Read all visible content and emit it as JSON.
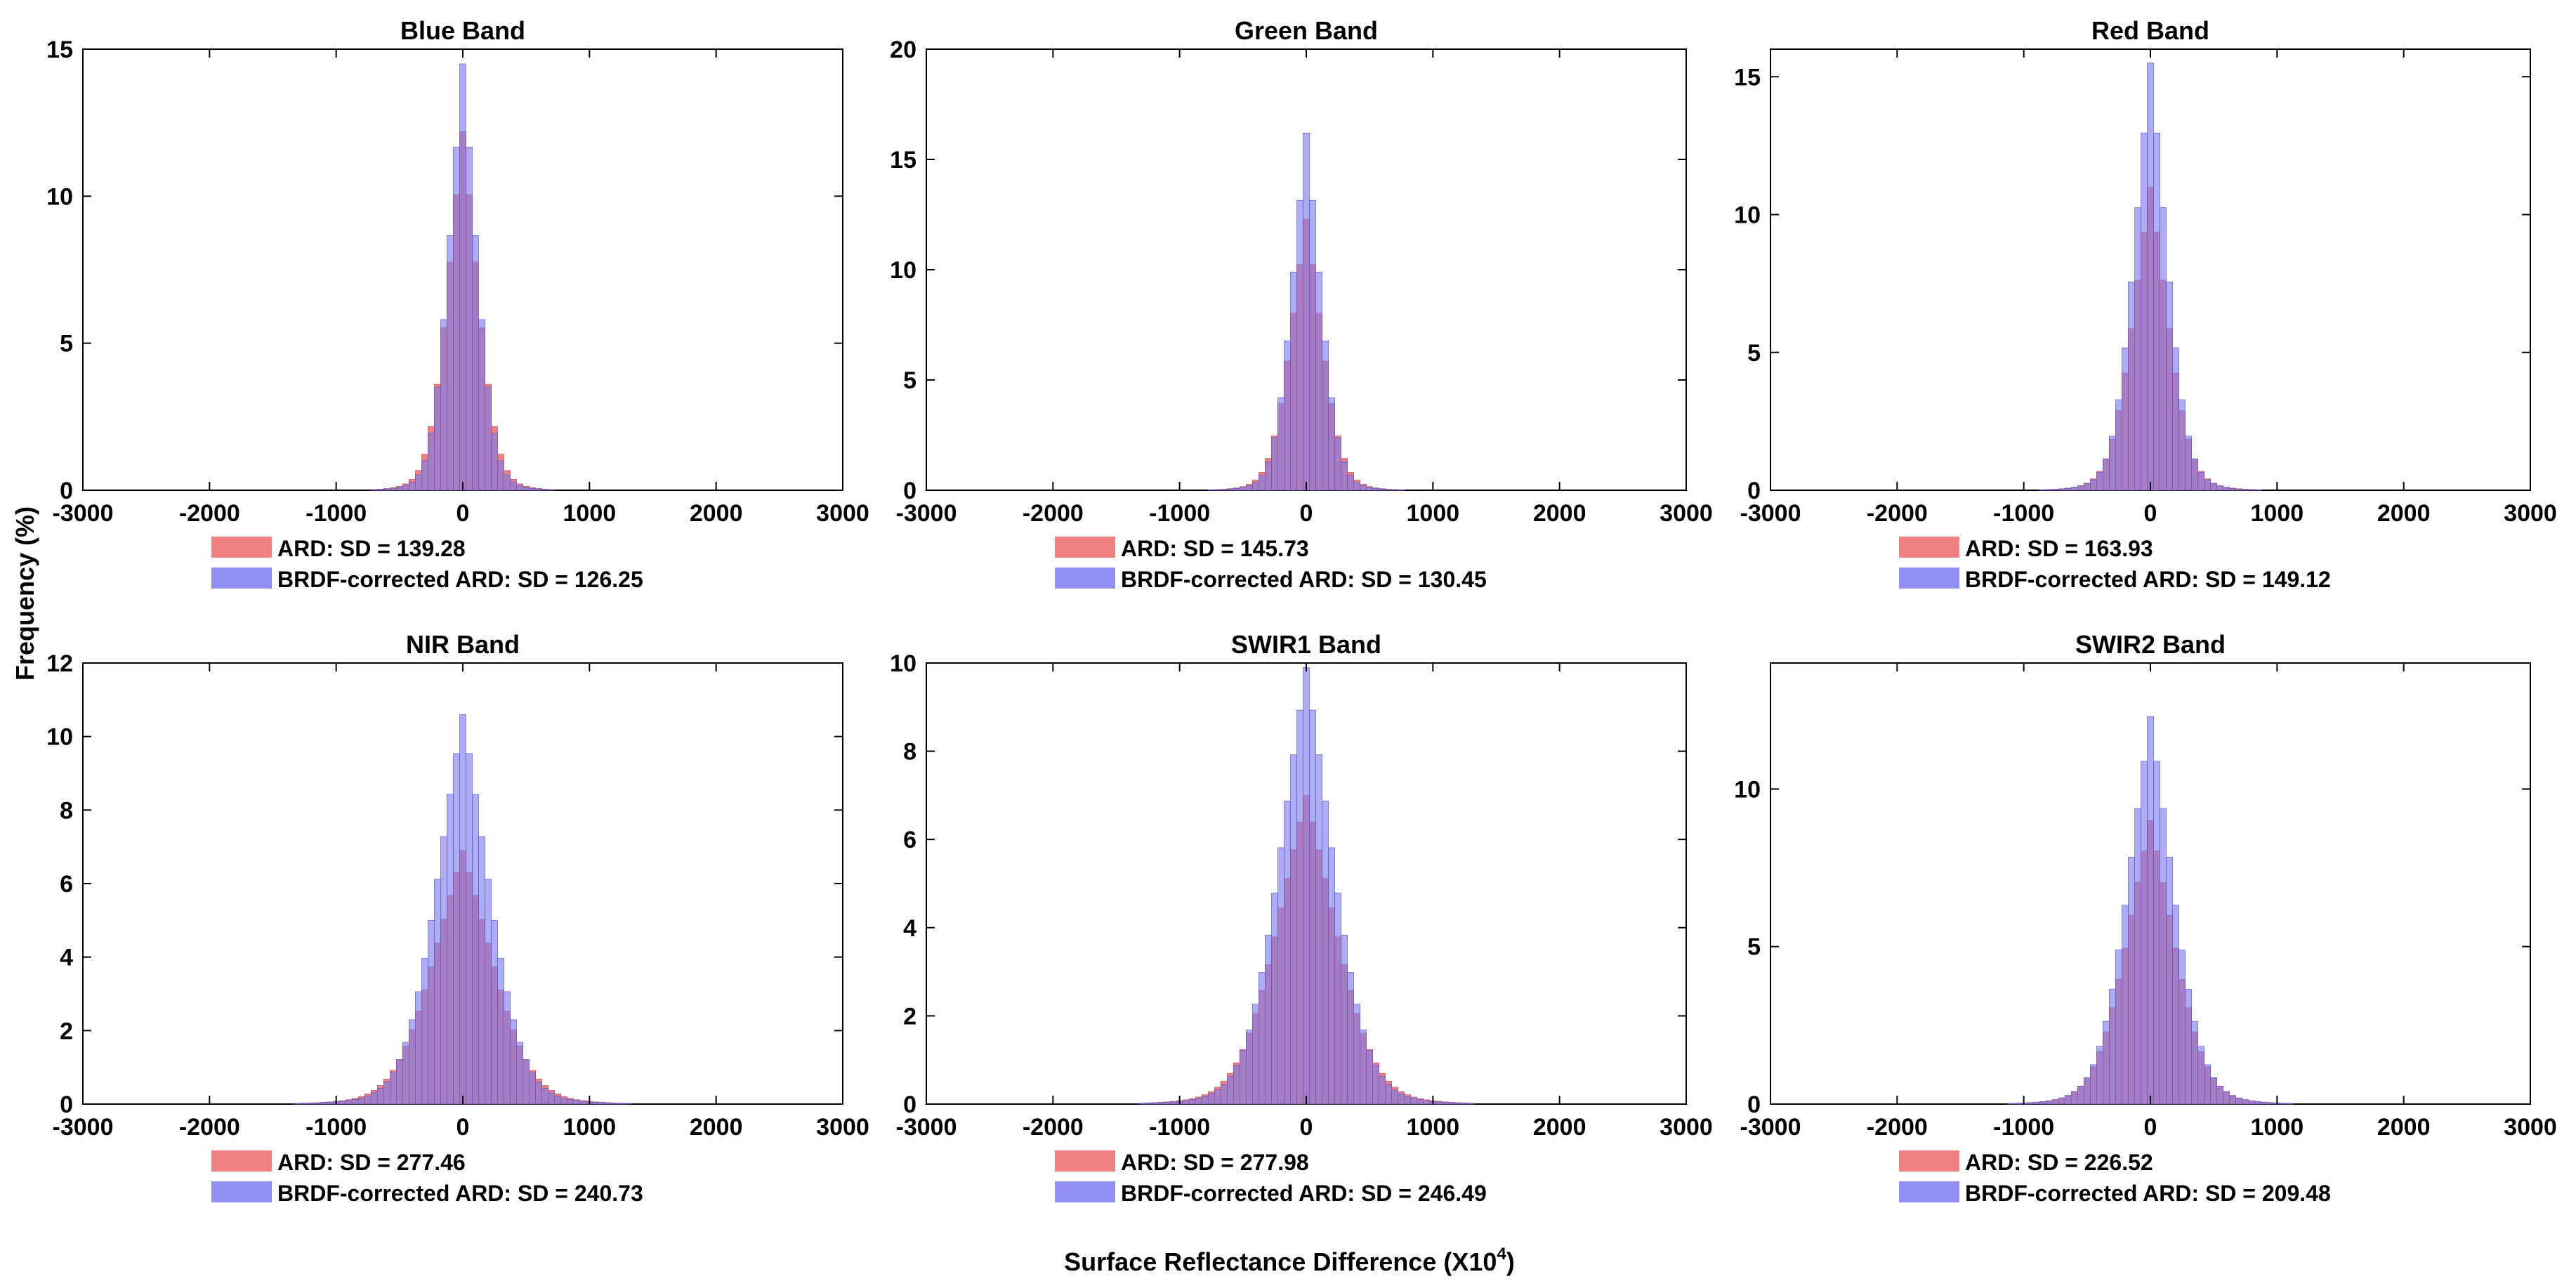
{
  "figure": {
    "ylabel": "Frequency (%)",
    "xlabel_main": "Surface Reflectance Difference (X10",
    "xlabel_exp": "4",
    "xlabel_close": ")"
  },
  "colors": {
    "ard": "#f08080",
    "brdf": "#7b7bf0",
    "overlap": "#8a4bc8",
    "axis": "#000000"
  },
  "chart_data": [
    {
      "type": "bar",
      "title": "Blue Band",
      "xlim": [
        -3000,
        3000
      ],
      "ylim": [
        0,
        15
      ],
      "xticks": [
        -3000,
        -2000,
        -1000,
        0,
        1000,
        2000,
        3000
      ],
      "yticks": [
        0,
        5,
        10,
        15
      ],
      "series": [
        {
          "name": "ARD",
          "sd_label": "SD = 139.28",
          "sd": 139.28,
          "peak": 12.2
        },
        {
          "name": "BRDF-corrected ARD",
          "sd_label": "SD = 126.25",
          "sd": 126.25,
          "peak": 14.5
        }
      ]
    },
    {
      "type": "bar",
      "title": "Green Band",
      "xlim": [
        -3000,
        3000
      ],
      "ylim": [
        0,
        20
      ],
      "xticks": [
        -3000,
        -2000,
        -1000,
        0,
        1000,
        2000,
        3000
      ],
      "yticks": [
        0,
        5,
        10,
        15,
        20
      ],
      "series": [
        {
          "name": "ARD",
          "sd_label": "SD = 145.73",
          "sd": 145.73,
          "peak": 12.3
        },
        {
          "name": "BRDF-corrected ARD",
          "sd_label": "SD = 130.45",
          "sd": 130.45,
          "peak": 16.2
        }
      ]
    },
    {
      "type": "bar",
      "title": "Red Band",
      "xlim": [
        -3000,
        3000
      ],
      "ylim": [
        0,
        16
      ],
      "xticks": [
        -3000,
        -2000,
        -1000,
        0,
        1000,
        2000,
        3000
      ],
      "yticks": [
        0,
        5,
        10,
        15
      ],
      "series": [
        {
          "name": "ARD",
          "sd_label": "SD = 163.93",
          "sd": 163.93,
          "peak": 11.0
        },
        {
          "name": "BRDF-corrected ARD",
          "sd_label": "SD = 149.12",
          "sd": 149.12,
          "peak": 15.5
        }
      ]
    },
    {
      "type": "bar",
      "title": "NIR Band",
      "xlim": [
        -3000,
        3000
      ],
      "ylim": [
        0,
        12
      ],
      "xticks": [
        -3000,
        -2000,
        -1000,
        0,
        1000,
        2000,
        3000
      ],
      "yticks": [
        0,
        2,
        4,
        6,
        8,
        10,
        12
      ],
      "series": [
        {
          "name": "ARD",
          "sd_label": "SD = 277.46",
          "sd": 277.46,
          "peak": 6.9
        },
        {
          "name": "BRDF-corrected ARD",
          "sd_label": "SD = 240.73",
          "sd": 240.73,
          "peak": 10.6
        }
      ]
    },
    {
      "type": "bar",
      "title": "SWIR1 Band",
      "xlim": [
        -3000,
        3000
      ],
      "ylim": [
        0,
        10
      ],
      "xticks": [
        -3000,
        -2000,
        -1000,
        0,
        1000,
        2000,
        3000
      ],
      "yticks": [
        0,
        2,
        4,
        6,
        8,
        10
      ],
      "series": [
        {
          "name": "ARD",
          "sd_label": "SD = 277.98",
          "sd": 277.98,
          "peak": 7.0
        },
        {
          "name": "BRDF-corrected ARD",
          "sd_label": "SD = 246.49",
          "sd": 246.49,
          "peak": 9.9
        }
      ]
    },
    {
      "type": "bar",
      "title": "SWIR2 Band",
      "xlim": [
        -3000,
        3000
      ],
      "ylim": [
        0,
        14
      ],
      "xticks": [
        -3000,
        -2000,
        -1000,
        0,
        1000,
        2000,
        3000
      ],
      "yticks": [
        0,
        5,
        10
      ],
      "series": [
        {
          "name": "ARD",
          "sd_label": "SD = 226.52",
          "sd": 226.52,
          "peak": 9.0
        },
        {
          "name": "BRDF-corrected ARD",
          "sd_label": "SD = 209.48",
          "sd": 209.48,
          "peak": 12.3
        }
      ]
    }
  ]
}
